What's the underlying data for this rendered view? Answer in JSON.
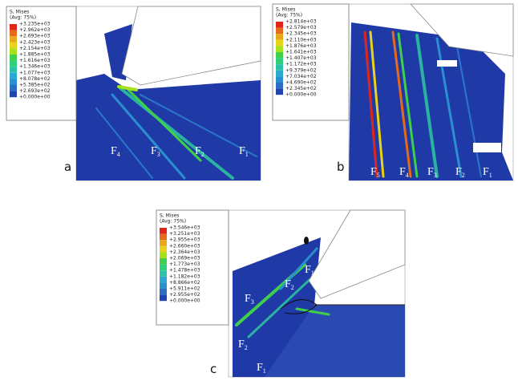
{
  "panels": [
    {
      "label": "a",
      "legend": {
        "title": "S, Mises",
        "subtitle": "(Avg: 75%)",
        "values": [
          "+3.235e+03",
          "+2.962e+03",
          "+2.693e+03",
          "+2.423e+03",
          "+2.154e+03",
          "+1.885e+03",
          "+1.616e+03",
          "+1.346e+03",
          "+1.077e+03",
          "+8.078e+02",
          "+5.385e+02",
          "+2.693e+02",
          "+0.000e+00"
        ]
      },
      "forces": [
        {
          "main": "F",
          "sub": "4"
        },
        {
          "main": "F",
          "sub": "3"
        },
        {
          "main": "F",
          "sub": "2"
        },
        {
          "main": "F",
          "sub": "1"
        }
      ]
    },
    {
      "label": "b",
      "legend": {
        "title": "S, Mises",
        "subtitle": "(Avg: 75%)",
        "values": [
          "+2.814e+03",
          "+2.579e+03",
          "+2.345e+03",
          "+2.110e+03",
          "+1.876e+03",
          "+1.641e+03",
          "+1.407e+03",
          "+1.172e+03",
          "+9.379e+02",
          "+7.034e+02",
          "+4.690e+02",
          "+2.345e+02",
          "+0.000e+00"
        ]
      },
      "forces": [
        {
          "main": "F",
          "sub": "5"
        },
        {
          "main": "F",
          "sub": "4"
        },
        {
          "main": "F",
          "sub": "3"
        },
        {
          "main": "F",
          "sub": "2"
        },
        {
          "main": "F",
          "sub": "1"
        }
      ]
    },
    {
      "label": "c",
      "legend": {
        "title": "S, Mises",
        "subtitle": "(Avg: 75%)",
        "values": [
          "+3.546e+03",
          "+3.251e+03",
          "+2.955e+03",
          "+2.660e+03",
          "+2.364e+03",
          "+2.069e+03",
          "+1.773e+03",
          "+1.478e+03",
          "+1.182e+03",
          "+8.866e+02",
          "+5.911e+02",
          "+2.955e+02",
          "+0.000e+00"
        ]
      },
      "forces": [
        {
          "main": "F",
          "sub": "1"
        },
        {
          "main": "F",
          "sub": "2"
        },
        {
          "main": "F",
          "sub": "3"
        },
        {
          "main": "F",
          "sub": "2"
        },
        {
          "main": "F",
          "sub": "1"
        }
      ]
    }
  ]
}
